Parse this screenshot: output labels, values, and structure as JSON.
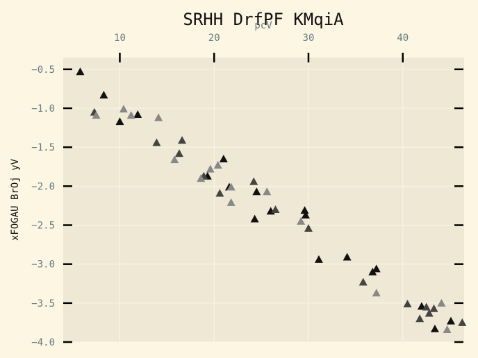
{
  "chart_data": {
    "type": "scatter",
    "title": "SRHH DrfPF KMqiA",
    "xlabel": "pcV",
    "ylabel": "xFOGAU BrOj yV",
    "xlim": [
      4,
      46.5
    ],
    "ylim": [
      -4.0,
      -0.35
    ],
    "x_ticks": [
      10,
      20,
      30,
      40
    ],
    "x_tick_labels": [
      "10",
      "20",
      "30",
      "40"
    ],
    "y_ticks": [
      -0.5,
      -1.0,
      -1.5,
      -2.0,
      -2.5,
      -3.0,
      -3.5,
      -4.0
    ],
    "y_tick_labels": [
      "−0.5",
      "−1.0",
      "−1.5",
      "−2.0",
      "−2.5",
      "−3.0",
      "−3.5",
      "−4.0"
    ],
    "x_axis_position": "top",
    "grid": true,
    "marker": "triangle",
    "colors": {
      "background": "#fdf6e3",
      "plot_background": "#eee8d5",
      "grid": "#fdf6e3",
      "black": "#111111",
      "dark": "#444444",
      "gray": "#888888"
    },
    "series": [
      {
        "color": "#111111",
        "points": [
          [
            5.8,
            -0.53
          ],
          [
            8.3,
            -0.83
          ],
          [
            10.0,
            -1.17
          ],
          [
            11.9,
            -1.08
          ],
          [
            21.0,
            -1.65
          ],
          [
            19.3,
            -1.87
          ],
          [
            21.6,
            -2.01
          ],
          [
            24.5,
            -2.07
          ],
          [
            24.3,
            -2.42
          ],
          [
            26.0,
            -2.32
          ],
          [
            29.6,
            -2.31
          ],
          [
            29.7,
            -2.37
          ],
          [
            31.1,
            -2.94
          ],
          [
            34.1,
            -2.91
          ],
          [
            36.8,
            -3.1
          ],
          [
            37.2,
            -3.06
          ],
          [
            42.0,
            -3.54
          ],
          [
            43.4,
            -3.83
          ],
          [
            45.1,
            -3.73
          ]
        ]
      },
      {
        "color": "#444444",
        "points": [
          [
            7.3,
            -1.05
          ],
          [
            13.9,
            -1.44
          ],
          [
            16.6,
            -1.41
          ],
          [
            16.3,
            -1.58
          ],
          [
            18.9,
            -1.87
          ],
          [
            20.6,
            -2.09
          ],
          [
            24.2,
            -1.94
          ],
          [
            26.5,
            -2.3
          ],
          [
            30.0,
            -2.54
          ],
          [
            35.8,
            -3.23
          ],
          [
            40.5,
            -3.51
          ],
          [
            41.8,
            -3.7
          ],
          [
            42.5,
            -3.55
          ],
          [
            42.8,
            -3.63
          ],
          [
            43.3,
            -3.57
          ],
          [
            46.3,
            -3.75
          ]
        ]
      },
      {
        "color": "#888888",
        "points": [
          [
            7.5,
            -1.09
          ],
          [
            10.4,
            -1.01
          ],
          [
            11.2,
            -1.09
          ],
          [
            14.1,
            -1.12
          ],
          [
            15.8,
            -1.66
          ],
          [
            18.6,
            -1.9
          ],
          [
            19.6,
            -1.78
          ],
          [
            20.4,
            -1.73
          ],
          [
            21.8,
            -2.01
          ],
          [
            21.8,
            -2.21
          ],
          [
            25.6,
            -2.07
          ],
          [
            29.2,
            -2.45
          ],
          [
            37.2,
            -3.37
          ],
          [
            44.1,
            -3.5
          ],
          [
            44.7,
            -3.84
          ]
        ]
      }
    ]
  }
}
